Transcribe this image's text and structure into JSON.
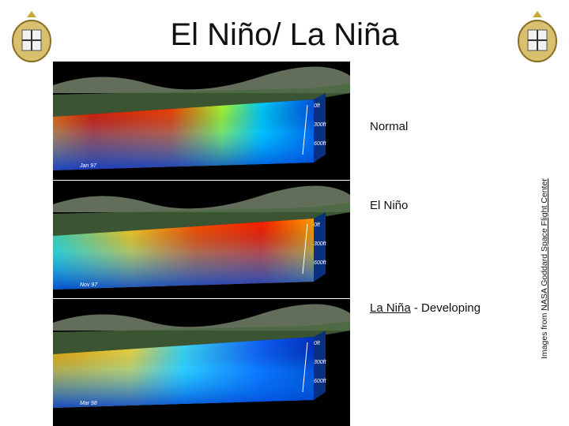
{
  "header": {
    "title": "El Niño/ La Niña"
  },
  "depth_scale": [
    "0ft",
    "300ft",
    "600ft"
  ],
  "panels": [
    {
      "label": "Normal",
      "date": "Jan 97"
    },
    {
      "label": "El Niño",
      "date": "Nov 97"
    },
    {
      "label": "La Niña",
      "suffix": "- Developing",
      "date": "Mar 98"
    }
  ],
  "credit": {
    "prefix": "Images from",
    "link": "NASA Goddard Space Flight Center"
  }
}
